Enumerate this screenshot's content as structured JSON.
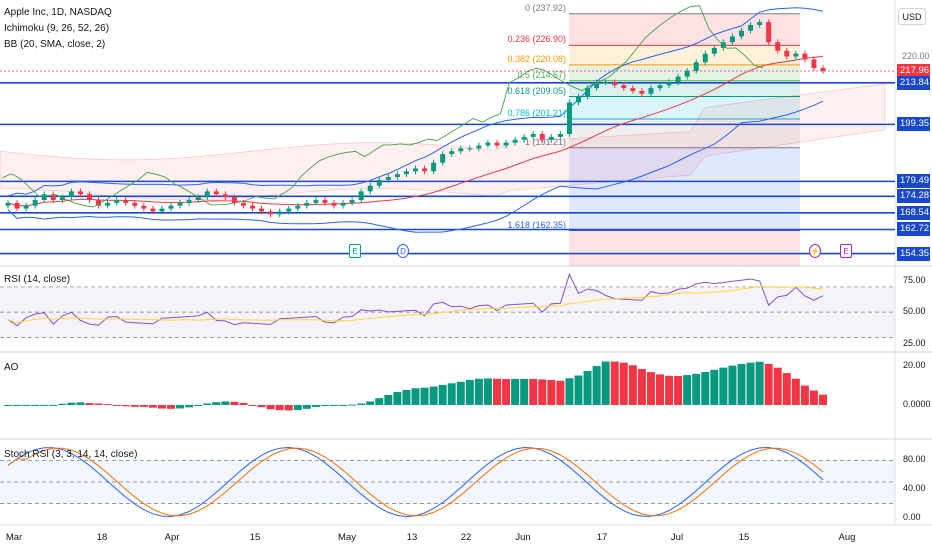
{
  "legend": {
    "symbol": "Apple Inc, 1D, NASDAQ",
    "ichimoku": "Ichimoku (9, 26, 52, 26)",
    "bb": "BB (20, SMA, close, 2)"
  },
  "currency": "USD",
  "colors": {
    "up": "#089981",
    "down": "#f23645",
    "hline": "#1848cc",
    "price_tag": "#f23645",
    "bb": "#2962ff",
    "rsi": "#7e57c2",
    "ao_up": "#089981",
    "ao_down": "#f23645",
    "stoch_k": "#2962ff",
    "stoch_d": "#ff6d00"
  },
  "price_axis": {
    "range": [
      150,
      242
    ],
    "current": "217.96",
    "tags": [
      {
        "text": "213.84",
        "value": 213.84
      },
      {
        "text": "199.35",
        "value": 199.35
      },
      {
        "text": "179.49",
        "value": 179.49
      },
      {
        "text": "174.28",
        "value": 174.28
      },
      {
        "text": "168.54",
        "value": 168.54
      },
      {
        "text": "162.72",
        "value": 162.72
      },
      {
        "text": "154.35",
        "value": 154.35
      }
    ],
    "hidden_tag": "220.00"
  },
  "fib_levels": [
    {
      "label": "0 (237.92)",
      "value": 237.92,
      "color": "#787b86"
    },
    {
      "label": "0.236 (226.90)",
      "value": 226.9,
      "color": "#f23645"
    },
    {
      "label": "0.382 (220.08)",
      "value": 220.08,
      "color": "#ff9800"
    },
    {
      "label": "0.5 (214.57)",
      "value": 214.57,
      "color": "#4caf50"
    },
    {
      "label": "0.618 (209.05)",
      "value": 209.05,
      "color": "#089981"
    },
    {
      "label": "0.786 (201.21)",
      "value": 201.21,
      "color": "#00bcd4"
    },
    {
      "label": "1 (191.21)",
      "value": 191.21,
      "color": "#787b86"
    },
    {
      "label": "1.618 (162.35)",
      "value": 162.35,
      "color": "#2962ff"
    }
  ],
  "events": [
    {
      "label": "E",
      "color": "#089981"
    },
    {
      "label": "D",
      "color": "#2962ff"
    },
    {
      "label": "⚡",
      "color": "#9c27b0"
    },
    {
      "label": "E",
      "color": "#9c27b0"
    }
  ],
  "rsi": {
    "label": "RSI (14, close)",
    "ticks": [
      "75.00",
      "50.00",
      "25.00"
    ]
  },
  "ao": {
    "label": "AO",
    "ticks": [
      "20.00",
      "0.0000"
    ]
  },
  "stoch": {
    "label": "Stoch RSI (3, 3, 14, 14, close)",
    "ticks": [
      "80.00",
      "40.00",
      "0.00"
    ]
  },
  "time_axis": [
    "Mar",
    "18",
    "Apr",
    "15",
    "May",
    "13",
    "22",
    "Jun",
    "17",
    "Jul",
    "15",
    "Aug"
  ],
  "chart_data": {
    "type": "candlestick",
    "title": "Apple Inc, 1D, NASDAQ",
    "candles_close_approx": [
      172,
      170,
      171,
      173,
      175,
      173,
      174,
      176,
      175,
      173,
      171,
      172,
      173,
      172,
      171,
      170,
      169,
      170,
      171,
      172,
      173,
      174,
      176,
      175,
      174,
      172,
      171,
      170,
      169,
      168,
      169,
      170,
      171,
      172,
      173,
      172,
      171,
      172,
      173,
      176,
      178,
      180,
      181,
      182,
      183,
      184,
      183,
      186,
      189,
      190,
      191,
      191,
      192,
      193,
      192,
      193,
      194,
      195,
      196,
      194,
      195,
      196,
      207,
      209,
      212,
      214,
      214,
      213,
      212,
      211,
      210,
      212,
      213,
      214,
      216,
      218,
      221,
      224,
      226,
      228,
      230,
      232,
      234,
      235,
      228,
      225,
      223,
      224,
      222,
      219,
      218
    ],
    "ylim": [
      150,
      242
    ]
  }
}
